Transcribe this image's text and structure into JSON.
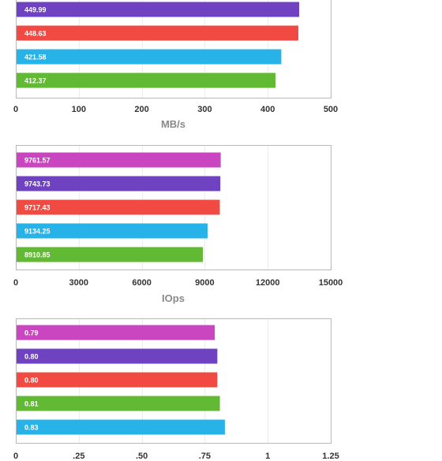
{
  "chart_data": [
    {
      "type": "bar",
      "orientation": "horizontal",
      "unit_label": "MB/s",
      "xlim": [
        0,
        500
      ],
      "tick_labels": [
        "0",
        "100",
        "200",
        "300",
        "400",
        "500"
      ],
      "categories_visible": false,
      "grid": true,
      "bars": [
        {
          "value": 449.99,
          "label": "449.99",
          "color": "#6f42c1"
        },
        {
          "value": 448.63,
          "label": "448.63",
          "color": "#f04a43"
        },
        {
          "value": 421.58,
          "label": "421.58",
          "color": "#27b3e8"
        },
        {
          "value": 412.37,
          "label": "412.37",
          "color": "#62b934"
        }
      ]
    },
    {
      "type": "bar",
      "orientation": "horizontal",
      "unit_label": "IOps",
      "xlim": [
        0,
        15000
      ],
      "tick_labels": [
        "0",
        "3000",
        "6000",
        "9000",
        "12000",
        "15000"
      ],
      "categories_visible": false,
      "grid": true,
      "bars": [
        {
          "value": 9761.57,
          "label": "9761.57",
          "color": "#c946c0"
        },
        {
          "value": 9743.73,
          "label": "9743.73",
          "color": "#6f42c1"
        },
        {
          "value": 9717.43,
          "label": "9717.43",
          "color": "#f04a43"
        },
        {
          "value": 9134.25,
          "label": "9134.25",
          "color": "#27b3e8"
        },
        {
          "value": 8910.85,
          "label": "8910.85",
          "color": "#62b934"
        }
      ]
    },
    {
      "type": "bar",
      "orientation": "horizontal",
      "unit_label": "",
      "xlim": [
        0,
        1.25
      ],
      "tick_labels": [
        "0",
        ".25",
        ".50",
        ".75",
        "1",
        "1.25"
      ],
      "categories_visible": false,
      "grid": true,
      "bars": [
        {
          "value": 0.79,
          "label": "0.79",
          "color": "#c946c0"
        },
        {
          "value": 0.8,
          "label": "0.80",
          "color": "#6f42c1"
        },
        {
          "value": 0.8,
          "label": "0.80",
          "color": "#f04a43"
        },
        {
          "value": 0.81,
          "label": "0.81",
          "color": "#62b934"
        },
        {
          "value": 0.83,
          "label": "0.83",
          "color": "#27b3e8"
        }
      ]
    }
  ]
}
